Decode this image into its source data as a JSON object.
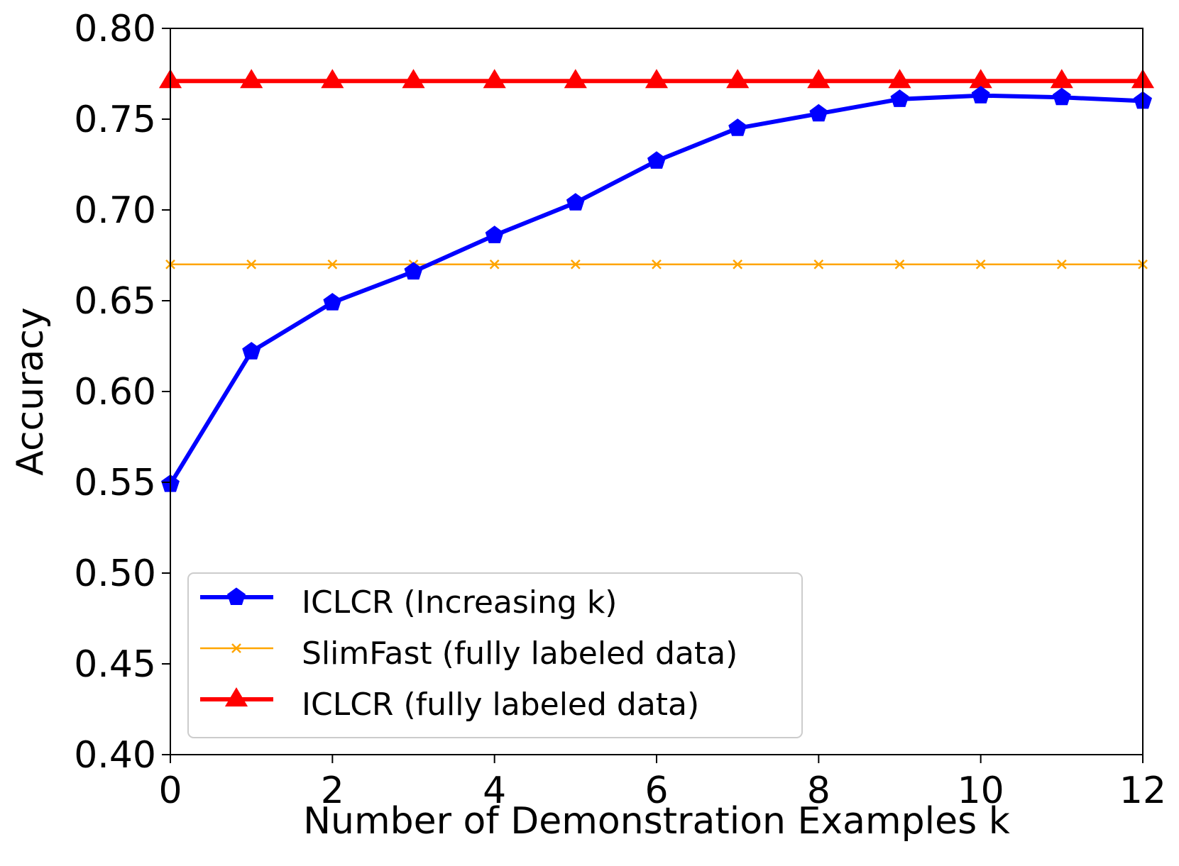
{
  "chart_data": {
    "type": "line",
    "title": "",
    "xlabel": "Number of Demonstration Examples k",
    "ylabel": "Accuracy",
    "xlim": [
      0,
      12
    ],
    "ylim": [
      0.4,
      0.8
    ],
    "x_ticks": [
      0,
      2,
      4,
      6,
      8,
      10,
      12
    ],
    "y_ticks": [
      "0.40",
      "0.45",
      "0.50",
      "0.55",
      "0.60",
      "0.65",
      "0.70",
      "0.75",
      "0.80"
    ],
    "grid": false,
    "legend_position": "lower-left",
    "x": [
      0,
      1,
      2,
      3,
      4,
      5,
      6,
      7,
      8,
      9,
      10,
      11,
      12
    ],
    "series": [
      {
        "name": "ICLCR (Increasing k)",
        "color": "#0000ff",
        "marker": "pentagon",
        "values": [
          0.549,
          0.622,
          0.649,
          0.666,
          0.686,
          0.704,
          0.727,
          0.745,
          0.753,
          0.761,
          0.763,
          0.762,
          0.76
        ]
      },
      {
        "name": "SlimFast (fully labeled data)",
        "color": "#ffa500",
        "marker": "x",
        "values": [
          0.67,
          0.67,
          0.67,
          0.67,
          0.67,
          0.67,
          0.67,
          0.67,
          0.67,
          0.67,
          0.67,
          0.67,
          0.67
        ]
      },
      {
        "name": "ICLCR (fully labeled data)",
        "color": "#ff0000",
        "marker": "triangle",
        "values": [
          0.771,
          0.771,
          0.771,
          0.771,
          0.771,
          0.771,
          0.771,
          0.771,
          0.771,
          0.771,
          0.771,
          0.771,
          0.771
        ]
      }
    ]
  }
}
